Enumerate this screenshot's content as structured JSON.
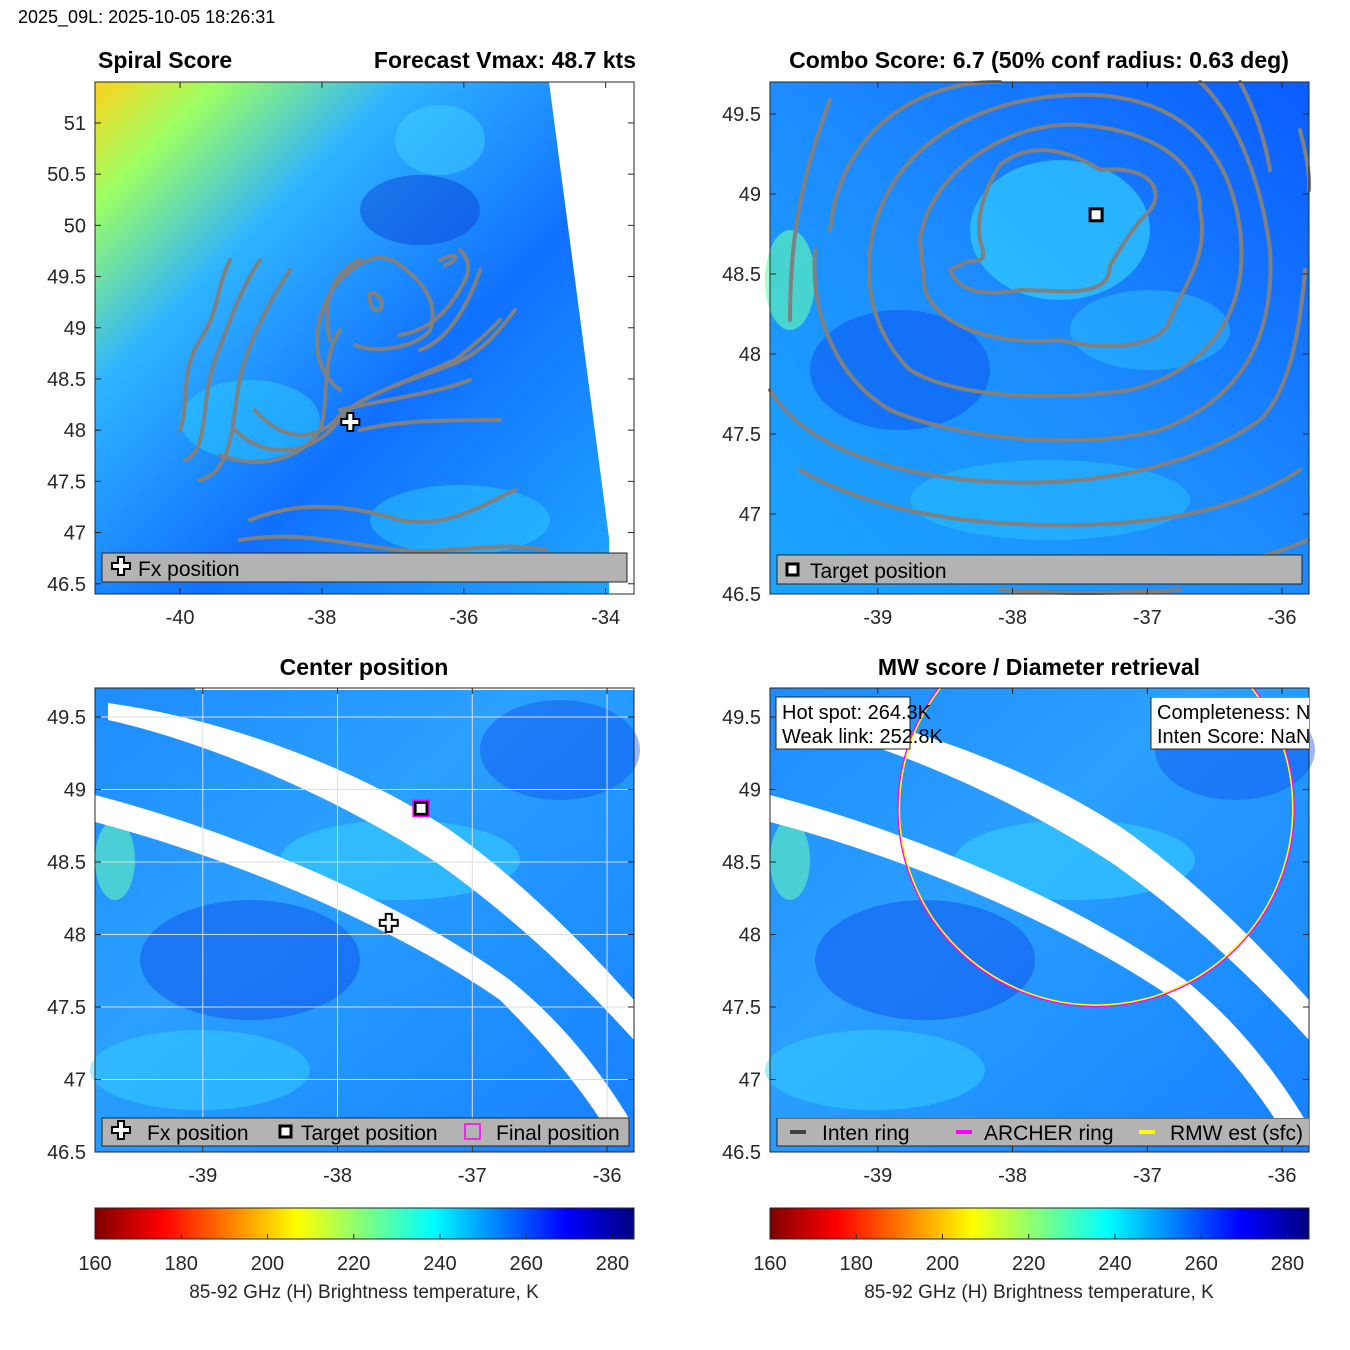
{
  "figure": {
    "supertitle": "2025_09L: 2025-10-05 18:26:31"
  },
  "colors": {
    "contour": "#808080",
    "final_square": "#ff00ff",
    "archer_ring": "#ff00ff",
    "rmw_ring": "#ffff00",
    "inten_ring": "#404040",
    "legend_bg": "#b3b3b3"
  },
  "chart_data": [
    {
      "panel": "spiral",
      "type": "heatmap",
      "title_left": "Spiral Score",
      "title_right": "Forecast Vmax: 48.7 kts",
      "xlim": [
        -41.2,
        -33.6
      ],
      "ylim": [
        46.4,
        51.4
      ],
      "xticks": [
        -40,
        -38,
        -36,
        -34
      ],
      "yticks": [
        46.5,
        47,
        47.5,
        48,
        48.5,
        49,
        49.5,
        50,
        50.5,
        51
      ],
      "markers": [
        {
          "kind": "fx_position",
          "symbol": "cross",
          "x": -37.6,
          "y": 48.08
        }
      ],
      "legend": [
        "Fx position"
      ]
    },
    {
      "panel": "combo",
      "type": "heatmap",
      "title": "Combo Score: 6.7  (50% conf radius: 0.63 deg)",
      "xlim": [
        -39.8,
        -35.8
      ],
      "ylim": [
        46.5,
        49.7
      ],
      "xticks": [
        -39,
        -38,
        -37,
        -36
      ],
      "yticks": [
        46.5,
        47,
        47.5,
        48,
        48.5,
        49,
        49.5
      ],
      "markers": [
        {
          "kind": "target_position",
          "symbol": "square",
          "x": -37.38,
          "y": 48.87
        }
      ],
      "legend": [
        "Target position"
      ]
    },
    {
      "panel": "center",
      "type": "heatmap",
      "title": "Center position",
      "xlim": [
        -39.8,
        -35.8
      ],
      "ylim": [
        46.5,
        49.7
      ],
      "xticks": [
        -39,
        -38,
        -37,
        -36
      ],
      "yticks": [
        46.5,
        47,
        47.5,
        48,
        48.5,
        49,
        49.5
      ],
      "markers": [
        {
          "kind": "fx_position",
          "symbol": "cross",
          "x": -37.62,
          "y": 48.08
        },
        {
          "kind": "target_position",
          "symbol": "square",
          "x": -37.38,
          "y": 48.87
        },
        {
          "kind": "final_position",
          "symbol": "square",
          "x": -37.38,
          "y": 48.87
        }
      ],
      "legend": [
        "Fx position",
        "Target position",
        "Final position"
      ]
    },
    {
      "panel": "mw",
      "type": "heatmap",
      "title": "MW score / Diameter retrieval",
      "xlim": [
        -39.8,
        -35.8
      ],
      "ylim": [
        46.5,
        49.7
      ],
      "xticks": [
        -39,
        -38,
        -37,
        -36
      ],
      "yticks": [
        46.5,
        47,
        47.5,
        48,
        48.5,
        49,
        49.5
      ],
      "annotations_left": [
        "Hot spot: 264.3K",
        "Weak link: 252.8K"
      ],
      "annotations_right": [
        "Completeness: NaN",
        "Inten Score: NaN"
      ],
      "rings": [
        {
          "name": "ARCHER ring",
          "center_x": -37.38,
          "center_y": 48.87,
          "radius_deg": 1.47
        },
        {
          "name": "RMW est (sfc)",
          "center_x": -37.38,
          "center_y": 48.87,
          "radius_deg": 1.46
        }
      ],
      "legend": [
        "Inten ring",
        "ARCHER ring",
        "RMW est (sfc)"
      ]
    }
  ],
  "colorbars": [
    {
      "min": 160,
      "max": 285,
      "ticks": [
        160,
        180,
        200,
        220,
        240,
        260,
        280
      ],
      "label": "85-92 GHz (H) Brightness temperature, K"
    },
    {
      "min": 160,
      "max": 285,
      "ticks": [
        160,
        180,
        200,
        220,
        240,
        260,
        280
      ],
      "label": "85-92 GHz (H) Brightness temperature, K"
    }
  ]
}
